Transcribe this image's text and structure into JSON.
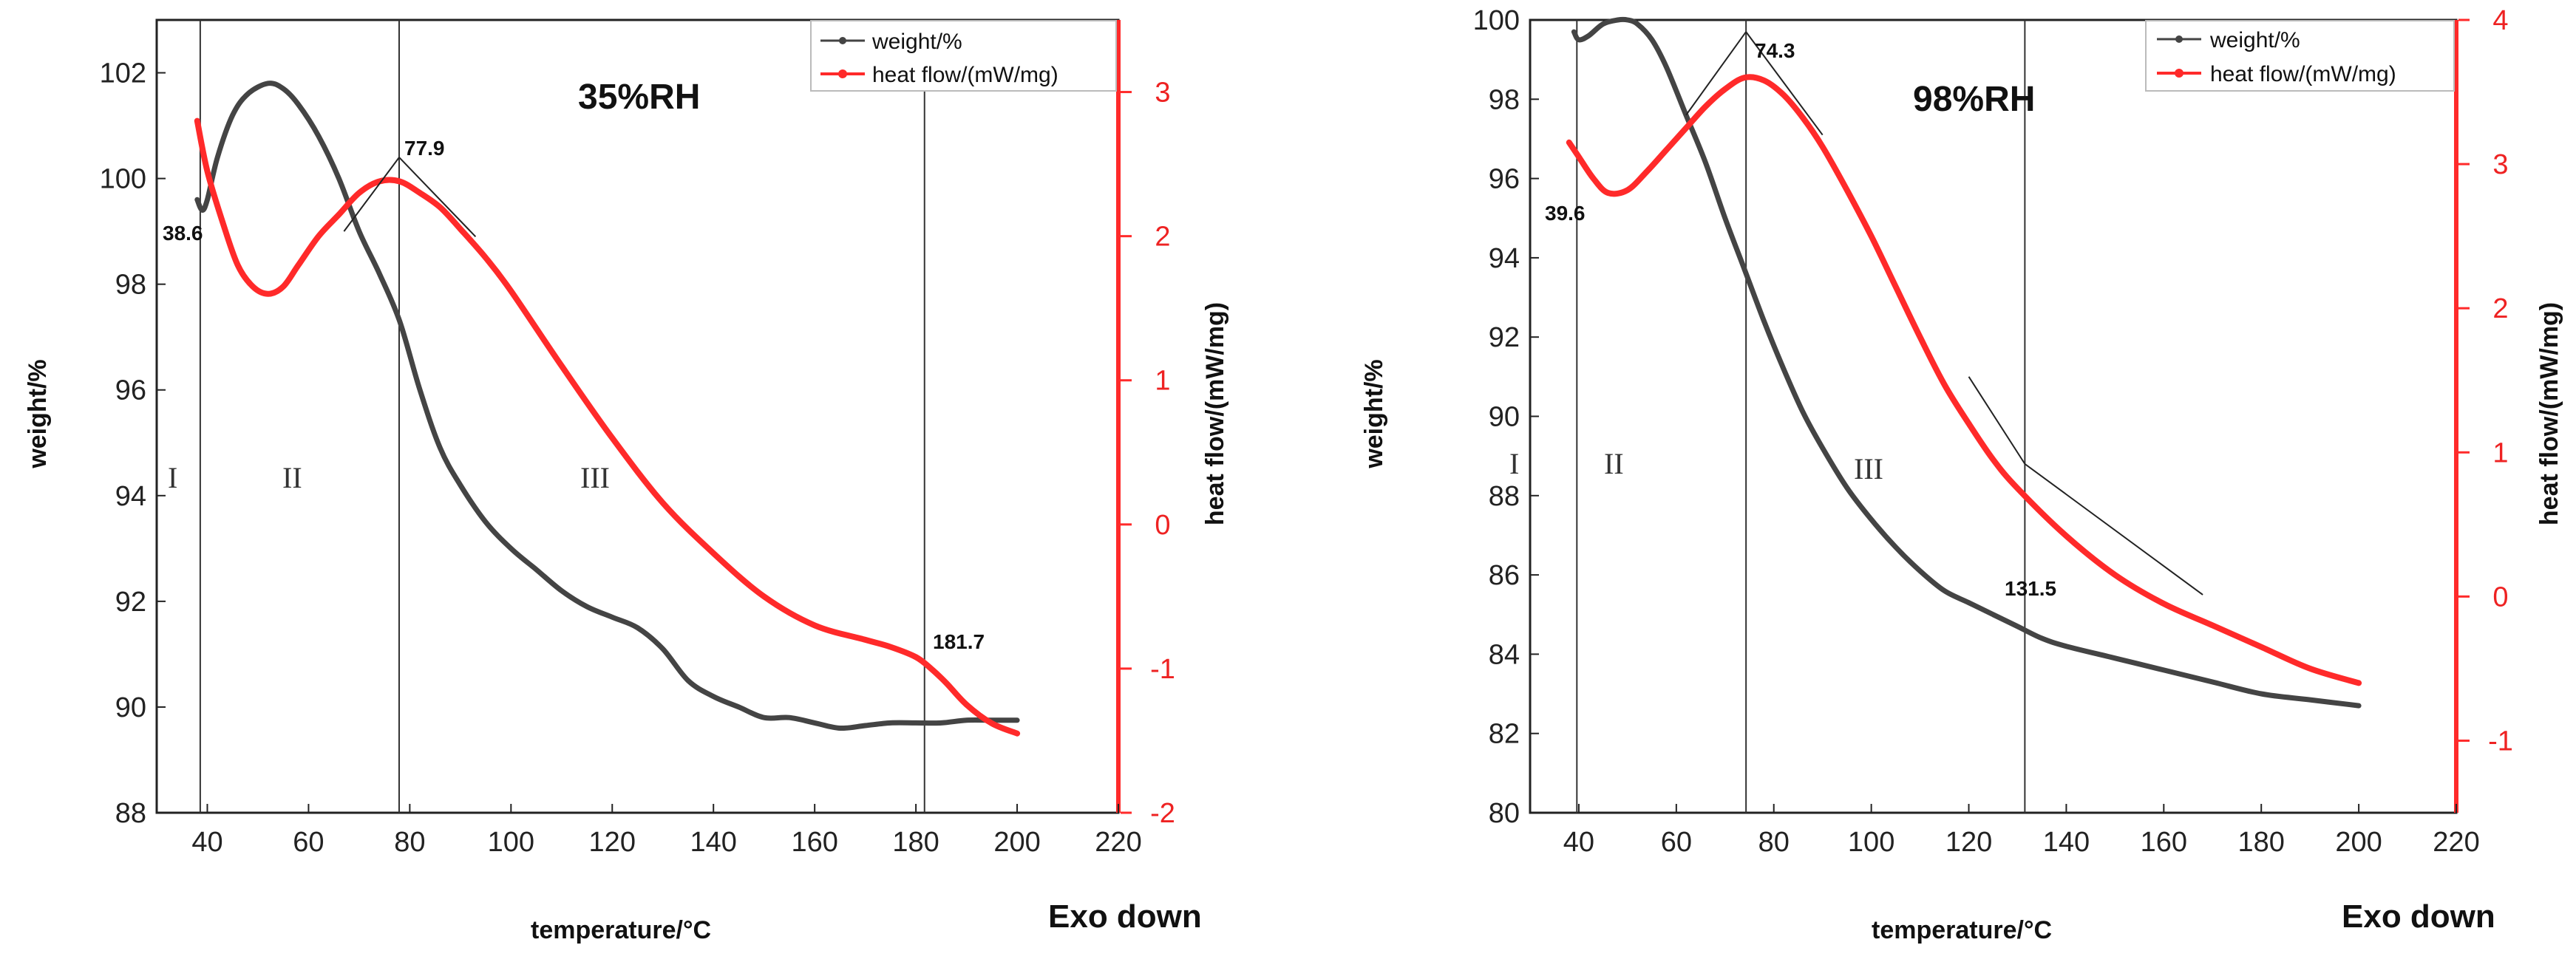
{
  "colors": {
    "weight": "#444444",
    "heat": "#ff2a2a",
    "grid": "#222222"
  },
  "chart_data": [
    {
      "type": "line",
      "title": "35%RH",
      "xlabel": "temperature/°C",
      "ylabel": "weight/%",
      "ylabel_right": "heat flow/(mW/mg)",
      "xlim": [
        30,
        220
      ],
      "ylim": [
        88,
        103
      ],
      "ylim_right": [
        -2,
        3.5
      ],
      "xticks": [
        "40",
        "60",
        "80",
        "100",
        "120",
        "140",
        "160",
        "180",
        "200",
        "220"
      ],
      "yticks": [
        "88",
        "90",
        "92",
        "94",
        "96",
        "98",
        "100",
        "102"
      ],
      "yticks_right": [
        "-2",
        "-1",
        "0",
        "1",
        "2",
        "3"
      ],
      "legend": [
        "weight/%",
        "heat flow/(mW/mg)"
      ],
      "legend_position": "top-right",
      "exo_label": "Exo down",
      "series": [
        {
          "name": "weight/%",
          "axis": "left",
          "x": [
            38,
            39,
            40,
            42,
            45,
            48,
            52,
            55,
            58,
            62,
            66,
            70,
            74,
            78,
            82,
            86,
            90,
            95,
            100,
            105,
            110,
            115,
            120,
            125,
            130,
            135,
            140,
            145,
            150,
            155,
            160,
            165,
            170,
            175,
            180,
            185,
            190,
            195,
            200
          ],
          "y": [
            99.6,
            99.4,
            99.6,
            100.4,
            101.2,
            101.6,
            101.8,
            101.7,
            101.4,
            100.8,
            100.0,
            99.0,
            98.2,
            97.3,
            96.0,
            94.9,
            94.2,
            93.5,
            93.0,
            92.6,
            92.2,
            91.9,
            91.7,
            91.5,
            91.1,
            90.5,
            90.2,
            90.0,
            89.8,
            89.8,
            89.7,
            89.6,
            89.65,
            89.7,
            89.7,
            89.7,
            89.75,
            89.75,
            89.75
          ]
        },
        {
          "name": "heat flow/(mW/mg)",
          "axis": "right",
          "x": [
            38,
            40,
            43,
            46,
            49,
            52,
            55,
            58,
            62,
            66,
            70,
            74,
            78,
            82,
            86,
            90,
            95,
            100,
            110,
            120,
            130,
            140,
            150,
            160,
            170,
            175,
            180,
            183,
            186,
            190,
            195,
            200
          ],
          "y": [
            2.8,
            2.45,
            2.1,
            1.8,
            1.65,
            1.6,
            1.65,
            1.8,
            2.0,
            2.15,
            2.3,
            2.38,
            2.38,
            2.3,
            2.2,
            2.05,
            1.85,
            1.62,
            1.1,
            0.6,
            0.15,
            -0.2,
            -0.5,
            -0.7,
            -0.8,
            -0.85,
            -0.92,
            -1.0,
            -1.1,
            -1.25,
            -1.38,
            -1.45
          ]
        }
      ],
      "vlines": [
        38.6,
        77.9,
        181.7
      ],
      "annotations": [
        "38.6",
        "77.9",
        "181.7"
      ],
      "regions": [
        "I",
        "II",
        "III"
      ]
    },
    {
      "type": "line",
      "title": "98%RH",
      "xlabel": "temperature/°C",
      "ylabel": "weight/%",
      "ylabel_right": "heat flow/(mW/mg)",
      "xlim": [
        30,
        220
      ],
      "ylim": [
        80,
        100
      ],
      "ylim_right": [
        -1.5,
        4
      ],
      "xticks": [
        "40",
        "60",
        "80",
        "100",
        "120",
        "140",
        "160",
        "180",
        "200",
        "220"
      ],
      "yticks": [
        "80",
        "82",
        "84",
        "86",
        "88",
        "90",
        "92",
        "94",
        "96",
        "98",
        "100"
      ],
      "yticks_right": [
        "-1",
        "0",
        "1",
        "2",
        "3",
        "4"
      ],
      "legend": [
        "weight/%",
        "heat flow/(mW/mg)"
      ],
      "legend_position": "top-right",
      "exo_label": "Exo down",
      "series": [
        {
          "name": "weight/%",
          "axis": "left",
          "x": [
            39,
            40,
            42,
            45,
            48,
            50,
            52,
            55,
            58,
            62,
            66,
            70,
            74,
            78,
            82,
            86,
            90,
            95,
            100,
            105,
            110,
            115,
            120,
            125,
            130,
            135,
            140,
            150,
            160,
            170,
            180,
            190,
            200
          ],
          "y": [
            99.7,
            99.5,
            99.6,
            99.9,
            100.0,
            100.0,
            99.9,
            99.5,
            98.8,
            97.6,
            96.4,
            95.0,
            93.7,
            92.4,
            91.2,
            90.1,
            89.2,
            88.2,
            87.4,
            86.7,
            86.1,
            85.6,
            85.3,
            85.0,
            84.7,
            84.4,
            84.2,
            83.9,
            83.6,
            83.3,
            83.0,
            82.85,
            82.7
          ]
        },
        {
          "name": "heat flow/(mW/mg)",
          "axis": "right",
          "x": [
            38,
            40,
            43,
            46,
            50,
            54,
            58,
            62,
            66,
            70,
            74,
            78,
            82,
            86,
            90,
            95,
            100,
            105,
            110,
            115,
            120,
            125,
            130,
            140,
            150,
            160,
            170,
            180,
            190,
            200
          ],
          "y": [
            3.15,
            3.05,
            2.9,
            2.8,
            2.82,
            2.95,
            3.1,
            3.25,
            3.4,
            3.52,
            3.6,
            3.58,
            3.48,
            3.32,
            3.12,
            2.82,
            2.5,
            2.15,
            1.8,
            1.47,
            1.2,
            0.95,
            0.75,
            0.42,
            0.15,
            -0.05,
            -0.2,
            -0.35,
            -0.5,
            -0.6
          ]
        }
      ],
      "vlines": [
        39.6,
        74.3,
        131.5
      ],
      "annotations": [
        "39.6",
        "74.3",
        "131.5"
      ],
      "regions": [
        "I",
        "II",
        "III"
      ]
    }
  ]
}
